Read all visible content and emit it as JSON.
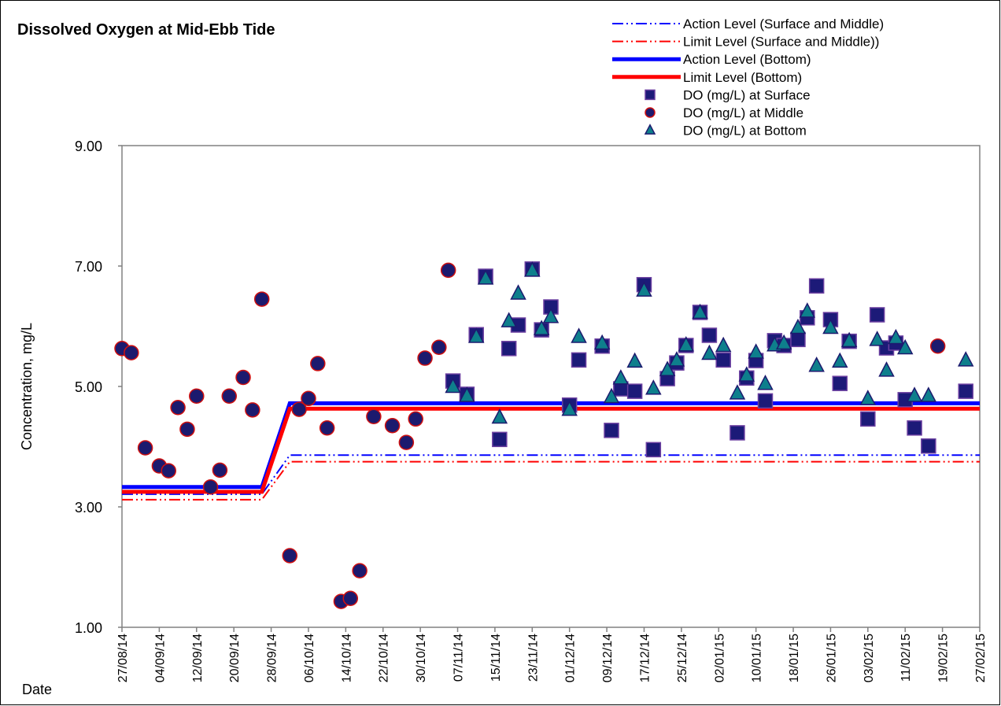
{
  "chart_data": {
    "type": "scatter",
    "title": "Dissolved Oxygen at Mid-Ebb Tide",
    "x_label": "Date",
    "y_label": "Concentration, mg/L",
    "xlim": [
      "2014-08-27",
      "2015-02-27"
    ],
    "xticks": [
      {
        "value": "2014-08-27",
        "label": "27/08/14"
      },
      {
        "value": "2014-09-04",
        "label": "04/09/14"
      },
      {
        "value": "2014-09-12",
        "label": "12/09/14"
      },
      {
        "value": "2014-09-20",
        "label": "20/09/14"
      },
      {
        "value": "2014-09-28",
        "label": "28/09/14"
      },
      {
        "value": "2014-10-06",
        "label": "06/10/14"
      },
      {
        "value": "2014-10-14",
        "label": "14/10/14"
      },
      {
        "value": "2014-10-22",
        "label": "22/10/14"
      },
      {
        "value": "2014-10-30",
        "label": "30/10/14"
      },
      {
        "value": "2014-11-07",
        "label": "07/11/14"
      },
      {
        "value": "2014-11-15",
        "label": "15/11/14"
      },
      {
        "value": "2014-11-23",
        "label": "23/11/14"
      },
      {
        "value": "2014-12-01",
        "label": "01/12/14"
      },
      {
        "value": "2014-12-09",
        "label": "09/12/14"
      },
      {
        "value": "2014-12-17",
        "label": "17/12/14"
      },
      {
        "value": "2014-12-25",
        "label": "25/12/14"
      },
      {
        "value": "2015-01-02",
        "label": "02/01/15"
      },
      {
        "value": "2015-01-10",
        "label": "10/01/15"
      },
      {
        "value": "2015-01-18",
        "label": "18/01/15"
      },
      {
        "value": "2015-01-26",
        "label": "26/01/15"
      },
      {
        "value": "2015-02-03",
        "label": "03/02/15"
      },
      {
        "value": "2015-02-11",
        "label": "11/02/15"
      },
      {
        "value": "2015-02-19",
        "label": "19/02/15"
      },
      {
        "value": "2015-02-27",
        "label": "27/02/15"
      }
    ],
    "ylim": [
      1,
      9
    ],
    "yticks": [
      {
        "value": 1,
        "label": "1.00"
      },
      {
        "value": 3,
        "label": "3.00"
      },
      {
        "value": 5,
        "label": "5.00"
      },
      {
        "value": 7,
        "label": "7.00"
      },
      {
        "value": 9,
        "label": "9.00"
      }
    ],
    "grid": false,
    "legend": "top-right",
    "series": [
      {
        "name": "Action Level (Surface and Middle)",
        "style": "dashdot",
        "color": "#0000ff",
        "x": [
          "2014-08-27",
          "2014-09-26",
          "2014-10-02",
          "2015-02-27"
        ],
        "values": [
          3.21,
          3.21,
          3.86,
          3.86
        ]
      },
      {
        "name": "Limit Level (Surface and Middle))",
        "style": "dashdot",
        "color": "#ff0000",
        "x": [
          "2014-08-27",
          "2014-09-26",
          "2014-10-02",
          "2015-02-27"
        ],
        "values": [
          3.12,
          3.12,
          3.75,
          3.75
        ]
      },
      {
        "name": "Action Level (Bottom)",
        "style": "solid",
        "color": "#0000ff",
        "x": [
          "2014-08-27",
          "2014-09-26",
          "2014-10-02",
          "2015-02-27"
        ],
        "values": [
          3.33,
          3.33,
          4.72,
          4.72
        ]
      },
      {
        "name": "Limit Level (Bottom)",
        "style": "solid",
        "color": "#ff0000",
        "x": [
          "2014-08-27",
          "2014-09-26",
          "2014-10-02",
          "2015-02-27"
        ],
        "values": [
          3.25,
          3.25,
          4.63,
          4.63
        ]
      },
      {
        "name": "DO (mg/L) at Surface",
        "style": "square",
        "color": "#1c1a78",
        "edgecolor": "#6b3fa0",
        "x": [
          "2014-11-06",
          "2014-11-09",
          "2014-11-11",
          "2014-11-13",
          "2014-11-16",
          "2014-11-18",
          "2014-11-20",
          "2014-11-23",
          "2014-11-25",
          "2014-11-27",
          "2014-12-01",
          "2014-12-03",
          "2014-12-08",
          "2014-12-10",
          "2014-12-12",
          "2014-12-15",
          "2014-12-17",
          "2014-12-19",
          "2014-12-22",
          "2014-12-24",
          "2014-12-26",
          "2014-12-29",
          "2014-12-31",
          "2015-01-03",
          "2015-01-06",
          "2015-01-08",
          "2015-01-10",
          "2015-01-12",
          "2015-01-14",
          "2015-01-16",
          "2015-01-19",
          "2015-01-21",
          "2015-01-23",
          "2015-01-26",
          "2015-01-28",
          "2015-01-30",
          "2015-02-03",
          "2015-02-05",
          "2015-02-07",
          "2015-02-09",
          "2015-02-11",
          "2015-02-13",
          "2015-02-16",
          "2015-02-24"
        ],
        "values": [
          5.09,
          4.87,
          5.86,
          6.83,
          4.12,
          5.63,
          6.02,
          6.95,
          5.94,
          6.32,
          4.69,
          5.44,
          5.67,
          4.27,
          4.96,
          4.92,
          6.69,
          3.95,
          5.13,
          5.39,
          5.68,
          6.23,
          5.85,
          5.44,
          4.23,
          5.14,
          5.43,
          4.76,
          5.76,
          5.68,
          5.78,
          6.14,
          6.67,
          6.11,
          5.05,
          5.75,
          4.46,
          6.19,
          5.64,
          5.72,
          4.78,
          4.31,
          4.01,
          4.92
        ]
      },
      {
        "name": "DO (mg/L) at Middle",
        "style": "circle",
        "color": "#1c1a6e",
        "edgecolor": "#d01010",
        "x": [
          "2014-08-27",
          "2014-08-29",
          "2014-09-01",
          "2014-09-04",
          "2014-09-06",
          "2014-09-08",
          "2014-09-10",
          "2014-09-12",
          "2014-09-15",
          "2014-09-17",
          "2014-09-19",
          "2014-09-22",
          "2014-09-24",
          "2014-09-26",
          "2014-10-02",
          "2014-10-04",
          "2014-10-06",
          "2014-10-08",
          "2014-10-10",
          "2014-10-13",
          "2014-10-15",
          "2014-10-17",
          "2014-10-20",
          "2014-10-24",
          "2014-10-27",
          "2014-10-29",
          "2014-10-31",
          "2014-11-03",
          "2014-11-05",
          "2015-02-18"
        ],
        "values": [
          5.63,
          5.56,
          3.98,
          3.68,
          3.6,
          4.65,
          4.29,
          4.84,
          3.33,
          3.61,
          4.84,
          5.15,
          4.61,
          6.45,
          2.19,
          4.62,
          4.8,
          5.38,
          4.31,
          1.43,
          1.48,
          1.94,
          4.5,
          4.35,
          4.07,
          4.46,
          5.47,
          5.65,
          6.93,
          5.67
        ]
      },
      {
        "name": "DO (mg/L) at Bottom",
        "style": "triangle",
        "color": "#0e7f8c",
        "edgecolor": "#1c1a6e",
        "x": [
          "2014-11-06",
          "2014-11-09",
          "2014-11-11",
          "2014-11-13",
          "2014-11-16",
          "2014-11-18",
          "2014-11-20",
          "2014-11-23",
          "2014-11-25",
          "2014-11-27",
          "2014-12-01",
          "2014-12-03",
          "2014-12-08",
          "2014-12-10",
          "2014-12-12",
          "2014-12-15",
          "2014-12-17",
          "2014-12-19",
          "2014-12-22",
          "2014-12-24",
          "2014-12-26",
          "2014-12-29",
          "2014-12-31",
          "2015-01-03",
          "2015-01-06",
          "2015-01-08",
          "2015-01-10",
          "2015-01-12",
          "2015-01-14",
          "2015-01-16",
          "2015-01-19",
          "2015-01-21",
          "2015-01-23",
          "2015-01-26",
          "2015-01-28",
          "2015-01-30",
          "2015-02-03",
          "2015-02-05",
          "2015-02-07",
          "2015-02-09",
          "2015-02-11",
          "2015-02-13",
          "2015-02-16",
          "2015-02-24"
        ],
        "values": [
          4.99,
          4.84,
          5.82,
          6.79,
          4.48,
          6.08,
          6.54,
          6.92,
          5.95,
          6.15,
          4.61,
          5.82,
          5.71,
          4.82,
          5.13,
          5.41,
          6.59,
          4.96,
          5.27,
          5.43,
          5.68,
          6.22,
          5.54,
          5.67,
          4.88,
          5.18,
          5.56,
          5.04,
          5.68,
          5.71,
          5.97,
          6.24,
          5.34,
          5.97,
          5.41,
          5.75,
          4.79,
          5.77,
          5.26,
          5.8,
          5.63,
          4.84,
          4.84,
          5.43
        ]
      }
    ]
  }
}
